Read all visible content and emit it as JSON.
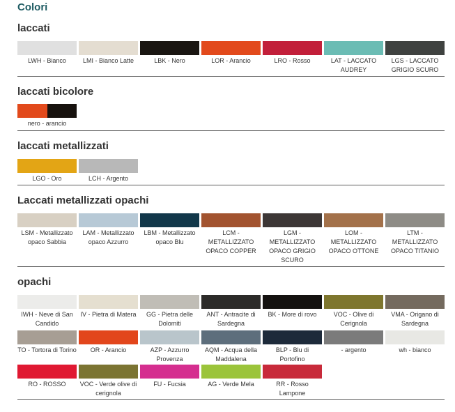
{
  "page_title": "Colori",
  "sections": {
    "laccati": {
      "title": "laccati",
      "swatches": [
        {
          "label": "LWH - Bianco",
          "color": "#e0e0e0"
        },
        {
          "label": "LMI - Bianco Latte",
          "color": "#e4ddd1"
        },
        {
          "label": "LBK - Nero",
          "color": "#1a1612"
        },
        {
          "label": "LOR - Arancio",
          "color": "#e24a1c"
        },
        {
          "label": "LRO - Rosso",
          "color": "#c21f3a"
        },
        {
          "label": "LAT - LACCATO AUDREY",
          "color": "#6bbcb4"
        },
        {
          "label": "LGS - LACCATO GRIGIO SCURO",
          "color": "#3f4240"
        }
      ]
    },
    "bicolore": {
      "title": "laccati bicolore",
      "swatches": [
        {
          "label": "nero - arancio",
          "color": "#e24a1c",
          "color2": "#17120e"
        }
      ]
    },
    "metallizzati": {
      "title": "laccati metallizzati",
      "swatches": [
        {
          "label": "LGO - Oro",
          "color": "#e3a515"
        },
        {
          "label": "LCH - Argento",
          "color": "#b8b8b8"
        }
      ]
    },
    "metallizzati_opachi": {
      "title": "Laccati metallizzati opachi",
      "swatches": [
        {
          "label": "LSM - Metallizzato opaco Sabbia",
          "color": "#d8d0c3"
        },
        {
          "label": "LAM - Metallizzato opaco Azzurro",
          "color": "#b7c9d6"
        },
        {
          "label": "LBM - Metallizzato opaco Blu",
          "color": "#12384a"
        },
        {
          "label": "LCM - METALLIZZATO OPACO COPPER",
          "color": "#a2532f"
        },
        {
          "label": "LGM - METALLIZZATO OPACO GRIGIO SCURO",
          "color": "#3d3736"
        },
        {
          "label": "LOM - METALLIZZATO OPACO OTTONE",
          "color": "#a3714a"
        },
        {
          "label": "LTM - METALLIZZATO OPACO TITANIO",
          "color": "#8e8c86"
        }
      ]
    },
    "opachi": {
      "title": "opachi",
      "rows": [
        [
          {
            "label": "IWH - Neve di San Candido",
            "color": "#ececea"
          },
          {
            "label": "IV - Pietra di Matera",
            "color": "#e5dfd0"
          },
          {
            "label": "GG - Pietra delle Dolomiti",
            "color": "#c0bdb6"
          },
          {
            "label": "ANT - Antracite di Sardegna",
            "color": "#2c2b29"
          },
          {
            "label": "BK - More di rovo",
            "color": "#141210"
          },
          {
            "label": "VOC - Olive di Cerignola",
            "color": "#7e762e"
          },
          {
            "label": "VMA - Origano di Sardegna",
            "color": "#746a5e"
          }
        ],
        [
          {
            "label": "TO - Tortora di Torino",
            "color": "#a79e94"
          },
          {
            "label": "OR - Arancio",
            "color": "#e2461c"
          },
          {
            "label": "AZP - Azzurro Provenza",
            "color": "#b9c5cb"
          },
          {
            "label": "AQM - Acqua della Maddalena",
            "color": "#5d6e7c"
          },
          {
            "label": "BLP - Blu di Portofino",
            "color": "#1d2a3a"
          },
          {
            "label": "- argento",
            "color": "#7b7b7b"
          },
          {
            "label": "wh - bianco",
            "color": "#e8e8e4"
          }
        ],
        [
          {
            "label": "RO - ROSSO",
            "color": "#e01932"
          },
          {
            "label": "VOC - Verde olive di cerignola",
            "color": "#7b7432"
          },
          {
            "label": "FU - Fucsia",
            "color": "#d52e8f"
          },
          {
            "label": "AG - Verde Mela",
            "color": "#9bc43a"
          },
          {
            "label": "RR - Rosso Lampone",
            "color": "#c82a3a"
          }
        ]
      ]
    }
  }
}
